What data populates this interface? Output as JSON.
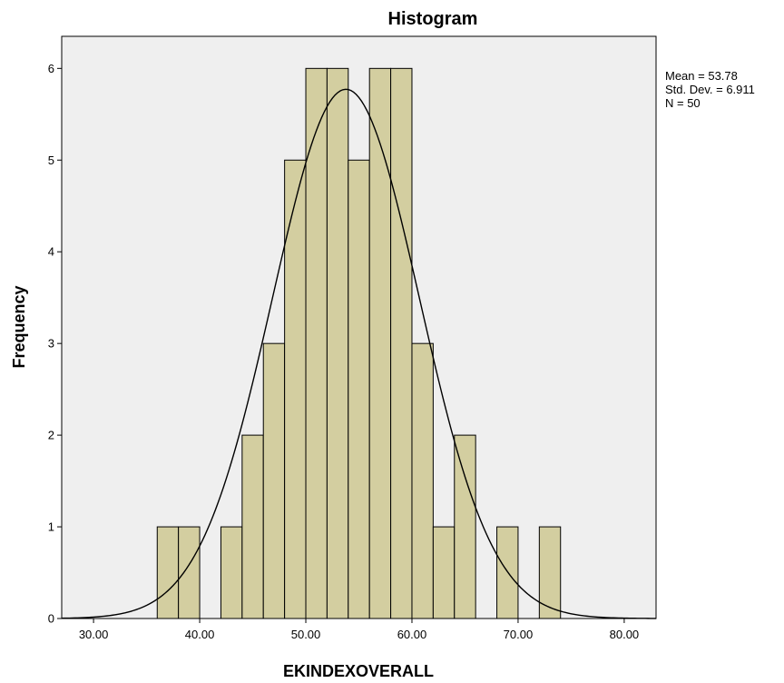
{
  "chart_data": {
    "type": "bar",
    "title": "Histogram",
    "xlabel": "EKINDEXOVERALL",
    "ylabel": "Frequency",
    "xlim": [
      27,
      83
    ],
    "ylim": [
      0,
      6.35
    ],
    "x_ticks": [
      30,
      40,
      50,
      60,
      70,
      80
    ],
    "x_tick_labels": [
      "30.00",
      "40.00",
      "50.00",
      "60.00",
      "70.00",
      "80.00"
    ],
    "y_ticks": [
      0,
      1,
      2,
      3,
      4,
      5,
      6
    ],
    "y_tick_labels": [
      "0",
      "1",
      "2",
      "3",
      "4",
      "5",
      "6"
    ],
    "bin_width": 2,
    "bins": [
      {
        "start": 36,
        "end": 38,
        "value": 1
      },
      {
        "start": 38,
        "end": 40,
        "value": 1
      },
      {
        "start": 40,
        "end": 42,
        "value": 0
      },
      {
        "start": 42,
        "end": 44,
        "value": 1
      },
      {
        "start": 44,
        "end": 46,
        "value": 2
      },
      {
        "start": 46,
        "end": 48,
        "value": 3
      },
      {
        "start": 48,
        "end": 50,
        "value": 5
      },
      {
        "start": 50,
        "end": 52,
        "value": 6
      },
      {
        "start": 52,
        "end": 54,
        "value": 6
      },
      {
        "start": 54,
        "end": 56,
        "value": 5
      },
      {
        "start": 56,
        "end": 58,
        "value": 6
      },
      {
        "start": 58,
        "end": 60,
        "value": 6
      },
      {
        "start": 60,
        "end": 62,
        "value": 3
      },
      {
        "start": 62,
        "end": 64,
        "value": 1
      },
      {
        "start": 64,
        "end": 66,
        "value": 2
      },
      {
        "start": 66,
        "end": 68,
        "value": 0
      },
      {
        "start": 68,
        "end": 70,
        "value": 1
      },
      {
        "start": 70,
        "end": 72,
        "value": 0
      },
      {
        "start": 72,
        "end": 74,
        "value": 1
      }
    ],
    "normal_curve": {
      "mean": 53.78,
      "std_dev": 6.911,
      "n": 50
    },
    "stats_text": [
      "Mean = 53.78",
      "Std. Dev. = 6.911",
      "N = 50"
    ],
    "grid": false,
    "colors": {
      "bar_fill": "#d3cea0",
      "bar_stroke": "#000000",
      "plot_background": "#efefef",
      "curve": "#000000"
    }
  }
}
